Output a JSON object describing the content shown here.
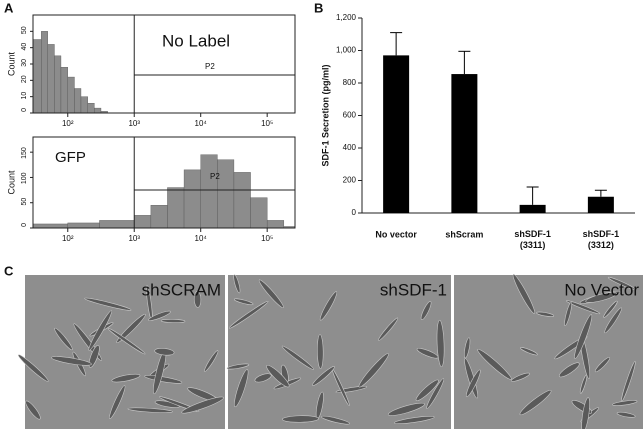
{
  "panels": [
    "A",
    "B",
    "C"
  ],
  "chart_data": [
    {
      "type": "histogram",
      "title": "No Label",
      "annotation": "P2",
      "y_label": "Count",
      "xscale": "log",
      "color": "#8c8c8c",
      "bins": [
        30,
        40,
        50,
        63,
        79,
        100,
        126,
        158,
        200,
        251,
        316,
        398,
        501
      ],
      "counts": [
        45,
        50,
        42,
        35,
        28,
        22,
        15,
        10,
        6,
        3,
        1,
        0
      ],
      "xlim": [
        30,
        262144
      ],
      "xticks": [
        {
          "value": 100,
          "label": "10²"
        },
        {
          "value": 1000,
          "label": "10³"
        },
        {
          "value": 10000,
          "label": "10⁴"
        },
        {
          "value": 100000,
          "label": "10⁵"
        }
      ],
      "ylim": [
        0,
        60
      ],
      "yticks": [
        0,
        10,
        20,
        30,
        40,
        50
      ]
    },
    {
      "type": "histogram",
      "title": "GFP",
      "annotation": "P2",
      "y_label": "Count",
      "xscale": "log",
      "color": "#8c8c8c",
      "bins": [
        30,
        100,
        300,
        1000,
        1780,
        3160,
        5620,
        10000,
        17800,
        31600,
        56200,
        100000,
        178000,
        262144
      ],
      "counts": [
        8,
        10,
        15,
        25,
        45,
        80,
        115,
        145,
        135,
        110,
        60,
        15,
        3
      ],
      "xlim": [
        30,
        262144
      ],
      "xticks": [
        {
          "value": 100,
          "label": "10²"
        },
        {
          "value": 1000,
          "label": "10³"
        },
        {
          "value": 10000,
          "label": "10⁴"
        },
        {
          "value": 100000,
          "label": "10⁵"
        }
      ],
      "ylim": [
        0,
        180
      ],
      "yticks": [
        0,
        50,
        100,
        150
      ]
    },
    {
      "type": "bar",
      "y_label": "SDF-1 Secretion (pg/ml)",
      "color": "#000000",
      "categories": [
        "No vector",
        "shScram",
        "shSDF-1\n(3311)",
        "shSDF-1\n(3312)"
      ],
      "values": [
        970,
        855,
        50,
        100
      ],
      "errors": [
        140,
        140,
        110,
        40
      ],
      "ylim": [
        0,
        1200
      ],
      "yticks": [
        0,
        200,
        400,
        600,
        800,
        {
          "value": 1000,
          "label": "1,000"
        },
        {
          "value": 1200,
          "label": "1,200"
        }
      ]
    }
  ],
  "images": [
    {
      "label": "shSCRAM"
    },
    {
      "label": "shSDF-1"
    },
    {
      "label": "No Vector"
    }
  ]
}
